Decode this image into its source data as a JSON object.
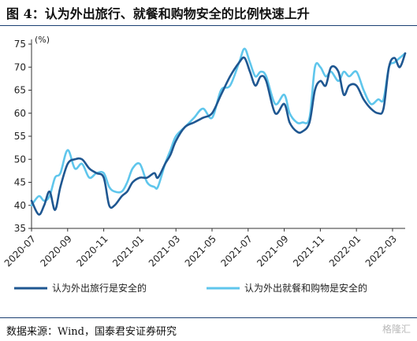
{
  "figure": {
    "title": "图 4：认为外出旅行、就餐和购物安全的比例快速上升",
    "source": "数据来源：Wind，国泰君安证券研究",
    "watermark": "格隆汇"
  },
  "chart_data": {
    "type": "line",
    "ylabel": "(%)",
    "ylim": [
      35,
      75
    ],
    "yticks": [
      "35",
      "40",
      "45",
      "50",
      "55",
      "60",
      "65",
      "70",
      "75"
    ],
    "xlim": [
      0,
      20.7
    ],
    "x_tick_labels": [
      "2020-07",
      "2020-09",
      "2020-11",
      "2021-01",
      "2021-03",
      "2021-05",
      "2021-07",
      "2021-09",
      "2021-11",
      "2022-01",
      "2022-03"
    ],
    "x_tick_positions": [
      0,
      2,
      4,
      6,
      8,
      10,
      12,
      14,
      16,
      18,
      20
    ],
    "grid": false,
    "legend_position": "bottom",
    "series": [
      {
        "name": "认为外出旅行是安全的",
        "color": "#1f5791",
        "x": [
          0,
          0.4,
          0.7,
          1.0,
          1.3,
          1.6,
          2.0,
          2.4,
          2.8,
          3.2,
          3.6,
          4.0,
          4.3,
          4.6,
          5.0,
          5.3,
          5.6,
          6.0,
          6.4,
          6.8,
          7.0,
          7.4,
          7.7,
          8.0,
          8.5,
          9.0,
          9.5,
          10.0,
          10.5,
          11.0,
          11.5,
          11.8,
          12.1,
          12.4,
          12.7,
          13.0,
          13.5,
          14.0,
          14.3,
          14.7,
          15.0,
          15.4,
          15.7,
          16.0,
          16.3,
          16.6,
          17.0,
          17.3,
          17.6,
          18.0,
          18.4,
          18.8,
          19.2,
          19.5,
          19.8,
          20.1,
          20.4,
          20.7
        ],
        "y": [
          41,
          38,
          40,
          43,
          39,
          44,
          49,
          50,
          50,
          48,
          47,
          46,
          40,
          40,
          42,
          43,
          45,
          46,
          46,
          47,
          46,
          49,
          51,
          54,
          57,
          58,
          59,
          60,
          64,
          68,
          71,
          72,
          69,
          66,
          68,
          67,
          60,
          62,
          58,
          56,
          56,
          58,
          65,
          67,
          66,
          70,
          69,
          64,
          66,
          66,
          63,
          61,
          60,
          61,
          70,
          72,
          70,
          73
        ]
      },
      {
        "name": "认为外出就餐和购物是安全的",
        "color": "#5fc6ec",
        "x": [
          0,
          0.4,
          0.7,
          1.0,
          1.3,
          1.6,
          2.0,
          2.4,
          2.8,
          3.2,
          3.6,
          4.0,
          4.3,
          4.6,
          5.0,
          5.3,
          5.6,
          6.0,
          6.4,
          6.8,
          7.0,
          7.4,
          7.7,
          8.0,
          8.5,
          9.0,
          9.5,
          10.0,
          10.5,
          11.0,
          11.5,
          11.8,
          12.1,
          12.4,
          12.7,
          13.0,
          13.5,
          14.0,
          14.3,
          14.7,
          15.0,
          15.4,
          15.7,
          16.0,
          16.3,
          16.6,
          17.0,
          17.3,
          17.6,
          18.0,
          18.4,
          18.8,
          19.2,
          19.5,
          19.8,
          20.1,
          20.4,
          20.7
        ],
        "y": [
          40,
          42,
          41,
          42,
          46,
          47,
          52,
          48,
          49,
          46,
          47,
          47,
          44,
          43,
          43,
          45,
          48,
          49,
          45,
          44,
          44,
          49,
          52,
          55,
          57,
          59,
          61,
          59,
          65,
          66,
          71,
          74,
          71,
          68,
          69,
          68,
          62,
          64,
          60,
          58,
          58,
          59,
          70,
          70,
          68,
          69,
          67,
          69,
          68,
          69,
          65,
          62,
          63,
          63,
          70,
          71,
          72,
          73
        ]
      }
    ]
  }
}
